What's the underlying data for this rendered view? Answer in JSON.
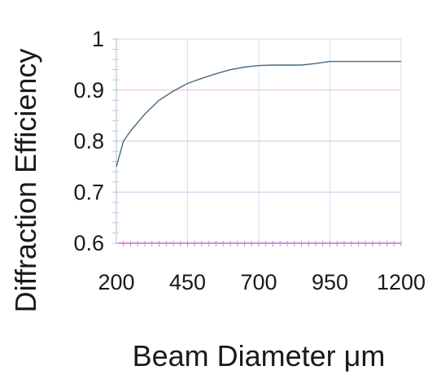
{
  "chart_data": {
    "type": "line",
    "title": "",
    "xlabel": "Beam Diameter μm",
    "ylabel": "Diffraction Efficiency",
    "xlim": [
      200,
      1200
    ],
    "ylim": [
      0.6,
      1
    ],
    "x_ticks": [
      200,
      450,
      700,
      950,
      1200
    ],
    "x_tick_labels": [
      "200",
      "450",
      "700",
      "950",
      "1200"
    ],
    "y_ticks": [
      0.6,
      0.7,
      0.8,
      0.9,
      1
    ],
    "y_tick_labels": [
      "0.6",
      "0.7",
      "0.8",
      "0.9",
      "1"
    ],
    "grid": true,
    "grid_colors": {
      "vertical": "#c9e6f0",
      "h_0_6": "#cc66dd",
      "h_0_7": "#d8d0ea",
      "h_0_8": "#d6d6d6",
      "h_0_9": "#f0c8d6",
      "h_1": "#d6e6ee"
    },
    "line_color": "#4a6a80",
    "series": [
      {
        "x": [
          200,
          225,
          250,
          300,
          350,
          400,
          450,
          500,
          550,
          600,
          650,
          700,
          750,
          800,
          850,
          900,
          950,
          1000,
          1050,
          1100,
          1150,
          1200
        ],
        "y": [
          0.75,
          0.8,
          0.82,
          0.853,
          0.88,
          0.898,
          0.913,
          0.923,
          0.932,
          0.94,
          0.945,
          0.948,
          0.949,
          0.949,
          0.949,
          0.952,
          0.956,
          0.956,
          0.956,
          0.956,
          0.956,
          0.956
        ]
      }
    ]
  }
}
